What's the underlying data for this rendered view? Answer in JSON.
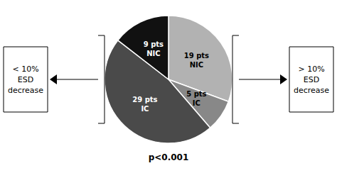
{
  "chart_data": {
    "type": "pie",
    "values": [
      19,
      5,
      29,
      9
    ],
    "value_labels": [
      "19 pts\nNIC",
      "5 pts\nIC",
      "29 pts\nIC",
      "9 pts\nNIC"
    ],
    "data_labels": true,
    "colors": [
      "#b2b2b2",
      "#888888",
      "#4a4a4a",
      "#111111"
    ],
    "annotations": [
      "p<0.001",
      "< 10%\nESD\ndecrease",
      "> 10%\nESD\ndecrease"
    ]
  }
}
